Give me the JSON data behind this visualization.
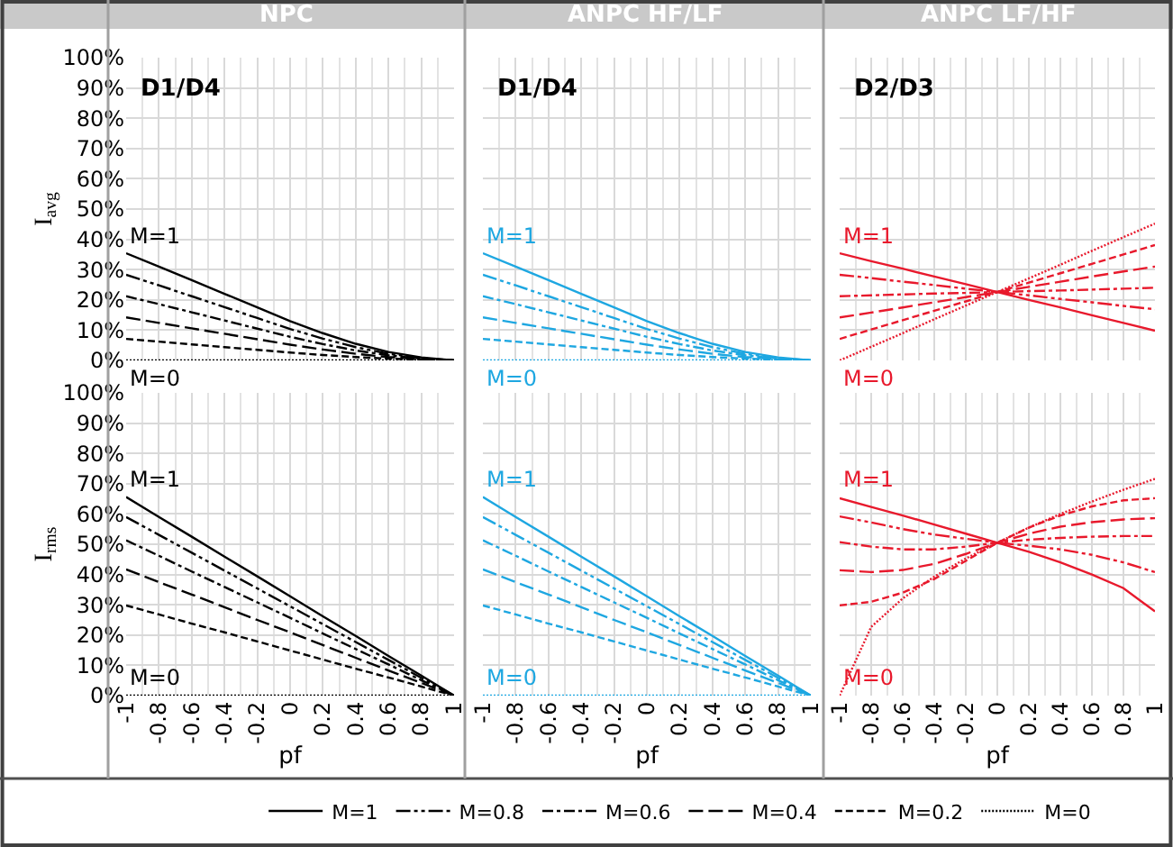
{
  "chart_data": [
    {
      "type": "line",
      "title": "NPC",
      "ylabel": "I$_{avg}$",
      "annotations": [
        "D1/D4",
        "M=1",
        "M=0"
      ],
      "x": [
        -1,
        -0.8,
        -0.6,
        -0.4,
        -0.2,
        0,
        0.2,
        0.4,
        0.6,
        0.8,
        1
      ],
      "xlim": [
        -1,
        1
      ],
      "xticks": [
        -1,
        -0.8,
        -0.6,
        -0.4,
        -0.2,
        0,
        0.2,
        0.4,
        0.6,
        0.8,
        1
      ],
      "ylim": [
        0,
        100
      ],
      "yticks": [
        {
          "value": 0,
          "label": "0%"
        },
        {
          "value": 10,
          "label": "10%"
        },
        {
          "value": 20,
          "label": "20%"
        },
        {
          "value": 30,
          "label": "30%"
        },
        {
          "value": 40,
          "label": "40%"
        },
        {
          "value": 50,
          "label": "50%"
        },
        {
          "value": 60,
          "label": "60%"
        },
        {
          "value": 70,
          "label": "70%"
        },
        {
          "value": 80,
          "label": "80%"
        },
        {
          "value": 90,
          "label": "90%"
        },
        {
          "value": 100,
          "label": "100%"
        }
      ],
      "grid": true,
      "legend": "bottom",
      "tick_labels": "y",
      "series": [
        {
          "name": "M=1",
          "color": "#000000",
          "line_style": "solid",
          "values": [
            35.4,
            31,
            26.5,
            22,
            17.5,
            13,
            9,
            5.5,
            2.8,
            1,
            0
          ]
        },
        {
          "name": "M=0.8",
          "color": "#000000",
          "line_style": "dashdotdot",
          "values": [
            28.3,
            24.8,
            21.2,
            17.6,
            14,
            10.4,
            7.2,
            4.4,
            2.2,
            0.8,
            0
          ]
        },
        {
          "name": "M=0.6",
          "color": "#000000",
          "line_style": "dashdot",
          "values": [
            21.2,
            18.6,
            15.9,
            13.2,
            10.5,
            7.8,
            5.4,
            3.3,
            1.7,
            0.6,
            0
          ]
        },
        {
          "name": "M=0.4",
          "color": "#000000",
          "line_style": "longdash",
          "values": [
            14.2,
            12.4,
            10.6,
            8.8,
            7,
            5.2,
            3.6,
            2.2,
            1.1,
            0.4,
            0
          ]
        },
        {
          "name": "M=0.2",
          "color": "#000000",
          "line_style": "dashed",
          "values": [
            7.1,
            6.2,
            5.3,
            4.4,
            3.5,
            2.6,
            1.8,
            1.1,
            0.6,
            0.2,
            0
          ]
        },
        {
          "name": "M=0",
          "color": "#000000",
          "line_style": "dotted",
          "values": [
            0,
            0,
            0,
            0,
            0,
            0,
            0,
            0,
            0,
            0,
            0
          ]
        }
      ]
    },
    {
      "type": "line",
      "title": "ANPC HF/LF",
      "annotations": [
        "D1/D4",
        "M=1",
        "M=0"
      ],
      "x": [
        -1,
        -0.8,
        -0.6,
        -0.4,
        -0.2,
        0,
        0.2,
        0.4,
        0.6,
        0.8,
        1
      ],
      "xlim": [
        -1,
        1
      ],
      "xticks": [
        -1,
        -0.8,
        -0.6,
        -0.4,
        -0.2,
        0,
        0.2,
        0.4,
        0.6,
        0.8,
        1
      ],
      "ylim": [
        0,
        100
      ],
      "yticks": [
        0,
        10,
        20,
        30,
        40,
        50,
        60,
        70,
        80,
        90,
        100
      ],
      "grid": true,
      "tick_labels": false,
      "series": [
        {
          "color": "#1ea7e1",
          "line_style": "solid",
          "values": [
            35.4,
            31,
            26.5,
            22,
            17.5,
            13,
            9,
            5.5,
            2.8,
            1,
            0
          ]
        },
        {
          "color": "#1ea7e1",
          "line_style": "dashdotdot",
          "values": [
            28.3,
            24.8,
            21.2,
            17.6,
            14,
            10.4,
            7.2,
            4.4,
            2.2,
            0.8,
            0
          ]
        },
        {
          "color": "#1ea7e1",
          "line_style": "dashdot",
          "values": [
            21.2,
            18.6,
            15.9,
            13.2,
            10.5,
            7.8,
            5.4,
            3.3,
            1.7,
            0.6,
            0
          ]
        },
        {
          "color": "#1ea7e1",
          "line_style": "longdash",
          "values": [
            14.2,
            12.4,
            10.6,
            8.8,
            7,
            5.2,
            3.6,
            2.2,
            1.1,
            0.4,
            0
          ]
        },
        {
          "color": "#1ea7e1",
          "line_style": "dashed",
          "values": [
            7.1,
            6.2,
            5.3,
            4.4,
            3.5,
            2.6,
            1.8,
            1.1,
            0.6,
            0.2,
            0
          ]
        },
        {
          "color": "#1ea7e1",
          "line_style": "dotted",
          "values": [
            0,
            0,
            0,
            0,
            0,
            0,
            0,
            0,
            0,
            0,
            0
          ]
        }
      ]
    },
    {
      "type": "line",
      "title": "ANPC LF/HF",
      "annotations": [
        "D2/D3",
        "M=1",
        "M=0"
      ],
      "x": [
        -1,
        -0.8,
        -0.6,
        -0.4,
        -0.2,
        0,
        0.2,
        0.4,
        0.6,
        0.8,
        1
      ],
      "xlim": [
        -1,
        1
      ],
      "xticks": [
        -1,
        -0.8,
        -0.6,
        -0.4,
        -0.2,
        0,
        0.2,
        0.4,
        0.6,
        0.8,
        1
      ],
      "ylim": [
        0,
        100
      ],
      "yticks": [
        0,
        10,
        20,
        30,
        40,
        50,
        60,
        70,
        80,
        90,
        100
      ],
      "grid": true,
      "tick_labels": false,
      "series": [
        {
          "color": "#e8192c",
          "line_style": "solid",
          "values": [
            35.4,
            32.8,
            30.3,
            27.7,
            25.2,
            22.6,
            20,
            17.5,
            14.9,
            12.4,
            9.8
          ]
        },
        {
          "color": "#e8192c",
          "line_style": "dashdotdot",
          "values": [
            28.3,
            27.2,
            26,
            24.9,
            23.7,
            22.6,
            21.5,
            20.3,
            19.2,
            18,
            16.9
          ]
        },
        {
          "color": "#e8192c",
          "line_style": "dashdot",
          "values": [
            21.2,
            21.5,
            21.8,
            22.1,
            22.3,
            22.6,
            22.9,
            23.1,
            23.4,
            23.7,
            24
          ]
        },
        {
          "color": "#e8192c",
          "line_style": "longdash",
          "values": [
            14.2,
            15.8,
            17.5,
            19.2,
            20.9,
            22.6,
            24.3,
            26,
            27.7,
            29.4,
            31
          ]
        },
        {
          "color": "#e8192c",
          "line_style": "dashed",
          "values": [
            7.1,
            10.2,
            13.3,
            16.4,
            19.5,
            22.6,
            25.7,
            28.8,
            31.9,
            35,
            38.1
          ]
        },
        {
          "color": "#e8192c",
          "line_style": "dotted",
          "values": [
            0,
            4.5,
            9,
            13.6,
            18.1,
            22.6,
            27.1,
            31.6,
            36.2,
            40.7,
            45.2
          ]
        }
      ]
    },
    {
      "type": "line",
      "ylabel": "I$_{rms}$",
      "xlabel": "pf",
      "annotations": [
        "M=1",
        "M=0"
      ],
      "x": [
        -1,
        -0.8,
        -0.6,
        -0.4,
        -0.2,
        0,
        0.2,
        0.4,
        0.6,
        0.8,
        1
      ],
      "xlim": [
        -1,
        1
      ],
      "xticks": [
        -1,
        -0.8,
        -0.6,
        -0.4,
        -0.2,
        0,
        0.2,
        0.4,
        0.6,
        0.8,
        1
      ],
      "ylim": [
        0,
        100
      ],
      "yticks": [
        {
          "value": 0,
          "label": "0%"
        },
        {
          "value": 10,
          "label": "10%"
        },
        {
          "value": 20,
          "label": "20%"
        },
        {
          "value": 30,
          "label": "30%"
        },
        {
          "value": 40,
          "label": "40%"
        },
        {
          "value": 50,
          "label": "50%"
        },
        {
          "value": 60,
          "label": "60%"
        },
        {
          "value": 70,
          "label": "70%"
        },
        {
          "value": 80,
          "label": "80%"
        },
        {
          "value": 90,
          "label": "90%"
        },
        {
          "value": 100,
          "label": "100%"
        }
      ],
      "grid": true,
      "series": [
        {
          "color": "#000000",
          "line_style": "solid",
          "values": [
            65.6,
            59,
            52.5,
            45.9,
            39.4,
            32.8,
            26.2,
            19.7,
            13.1,
            6.6,
            0
          ]
        },
        {
          "color": "#000000",
          "line_style": "dashdotdot",
          "values": [
            59,
            53.1,
            47.2,
            41.3,
            35.4,
            29.5,
            23.6,
            17.7,
            11.8,
            5.9,
            0
          ]
        },
        {
          "color": "#000000",
          "line_style": "dashdot",
          "values": [
            51.3,
            46.2,
            41,
            35.9,
            30.8,
            25.7,
            20.5,
            15.4,
            10.3,
            5.1,
            0
          ]
        },
        {
          "color": "#000000",
          "line_style": "longdash",
          "values": [
            41.7,
            37.5,
            33.4,
            29.2,
            25,
            20.9,
            16.7,
            12.5,
            8.3,
            4.2,
            0
          ]
        },
        {
          "color": "#000000",
          "line_style": "dashed",
          "values": [
            29.8,
            26.8,
            23.8,
            20.9,
            17.9,
            14.9,
            11.9,
            8.9,
            6,
            3,
            0
          ]
        },
        {
          "color": "#000000",
          "line_style": "dotted",
          "values": [
            0,
            0,
            0,
            0,
            0,
            0,
            0,
            0,
            0,
            0,
            0
          ]
        }
      ]
    },
    {
      "type": "line",
      "xlabel": "pf",
      "annotations": [
        "M=1",
        "M=0"
      ],
      "x": [
        -1,
        -0.8,
        -0.6,
        -0.4,
        -0.2,
        0,
        0.2,
        0.4,
        0.6,
        0.8,
        1
      ],
      "xlim": [
        -1,
        1
      ],
      "xticks": [
        -1,
        -0.8,
        -0.6,
        -0.4,
        -0.2,
        0,
        0.2,
        0.4,
        0.6,
        0.8,
        1
      ],
      "ylim": [
        0,
        100
      ],
      "yticks": [
        0,
        10,
        20,
        30,
        40,
        50,
        60,
        70,
        80,
        90,
        100
      ],
      "grid": true,
      "tick_labels": "x",
      "series": [
        {
          "color": "#1ea7e1",
          "line_style": "solid",
          "values": [
            65.6,
            59,
            52.5,
            45.9,
            39.4,
            32.8,
            26.2,
            19.7,
            13.1,
            6.6,
            0
          ]
        },
        {
          "color": "#1ea7e1",
          "line_style": "dashdotdot",
          "values": [
            59,
            53.1,
            47.2,
            41.3,
            35.4,
            29.5,
            23.6,
            17.7,
            11.8,
            5.9,
            0
          ]
        },
        {
          "color": "#1ea7e1",
          "line_style": "dashdot",
          "values": [
            51.3,
            46.2,
            41,
            35.9,
            30.8,
            25.7,
            20.5,
            15.4,
            10.3,
            5.1,
            0
          ]
        },
        {
          "color": "#1ea7e1",
          "line_style": "longdash",
          "values": [
            41.7,
            37.5,
            33.4,
            29.2,
            25,
            20.9,
            16.7,
            12.5,
            8.3,
            4.2,
            0
          ]
        },
        {
          "color": "#1ea7e1",
          "line_style": "dashed",
          "values": [
            29.8,
            26.8,
            23.8,
            20.9,
            17.9,
            14.9,
            11.9,
            8.9,
            6,
            3,
            0
          ]
        },
        {
          "color": "#1ea7e1",
          "line_style": "dotted",
          "values": [
            0,
            0,
            0,
            0,
            0,
            0,
            0,
            0,
            0,
            0,
            0
          ]
        }
      ]
    },
    {
      "type": "line",
      "xlabel": "pf",
      "annotations": [
        "M=1",
        "M=0"
      ],
      "x": [
        -1,
        -0.8,
        -0.6,
        -0.4,
        -0.2,
        0,
        0.2,
        0.4,
        0.6,
        0.8,
        1
      ],
      "xlim": [
        -1,
        1
      ],
      "xticks": [
        -1,
        -0.8,
        -0.6,
        -0.4,
        -0.2,
        0,
        0.2,
        0.4,
        0.6,
        0.8,
        1
      ],
      "ylim": [
        0,
        100
      ],
      "yticks": [
        0,
        10,
        20,
        30,
        40,
        50,
        60,
        70,
        80,
        90,
        100
      ],
      "grid": true,
      "tick_labels": "x",
      "series": [
        {
          "color": "#e8192c",
          "line_style": "solid",
          "values": [
            65.2,
            62.3,
            59.5,
            56.5,
            53.5,
            50.5,
            47.5,
            44,
            40,
            35.5,
            27.8
          ]
        },
        {
          "color": "#e8192c",
          "line_style": "dashdotdot",
          "values": [
            59.2,
            57.2,
            55,
            53.2,
            51.8,
            50.5,
            49.5,
            48.3,
            46.5,
            44,
            40.8
          ]
        },
        {
          "color": "#e8192c",
          "line_style": "dashdot",
          "values": [
            50.7,
            49.2,
            48.3,
            48.3,
            49.2,
            50.5,
            51.5,
            52.1,
            52.5,
            52.7,
            52.7
          ]
        },
        {
          "color": "#e8192c",
          "line_style": "longdash",
          "values": [
            41.4,
            40.8,
            41.5,
            43.5,
            46.8,
            50.5,
            53.5,
            55.8,
            57.3,
            58.2,
            58.6
          ]
        },
        {
          "color": "#e8192c",
          "line_style": "dashed",
          "values": [
            29.8,
            31,
            34,
            38.5,
            44.5,
            50.5,
            55.5,
            59.5,
            62.5,
            64.5,
            65.2
          ]
        },
        {
          "color": "#e8192c",
          "line_style": "dotted",
          "values": [
            0,
            22.7,
            32.1,
            39.3,
            45.3,
            50.5,
            55.5,
            60,
            64.1,
            68,
            71.6
          ]
        }
      ]
    }
  ]
}
